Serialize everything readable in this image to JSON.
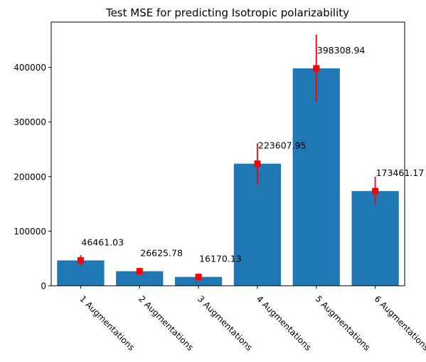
{
  "chart_data": {
    "type": "bar",
    "title": "Test MSE for predicting Isotropic polarizability",
    "xlabel": "",
    "ylabel": "",
    "categories": [
      "1 Augmentations",
      "2 Augmentations",
      "3 Augmentations",
      "4 Augmentations",
      "5 Augmentations",
      "6 Augmentations"
    ],
    "values": [
      46461.03,
      26625.78,
      16170.13,
      223607.95,
      398308.94,
      173461.17
    ],
    "value_labels": [
      "46461.03",
      "26625.78",
      "16170.13",
      "223607.95",
      "398308.94",
      "173461.17"
    ],
    "error_lower": [
      37000,
      22000,
      12000,
      186000,
      338000,
      148000
    ],
    "error_upper": [
      56000,
      31000,
      20000,
      261000,
      460000,
      200000
    ],
    "yticks": [
      0,
      100000,
      200000,
      300000,
      400000
    ],
    "ytick_labels": [
      "0",
      "100000",
      "200000",
      "300000",
      "400000"
    ],
    "ylim": [
      0,
      483000
    ],
    "grid": false,
    "legend": "none",
    "colors": {
      "bar": "#1f77b4",
      "error": "#ff0000",
      "axis": "#000000"
    }
  }
}
